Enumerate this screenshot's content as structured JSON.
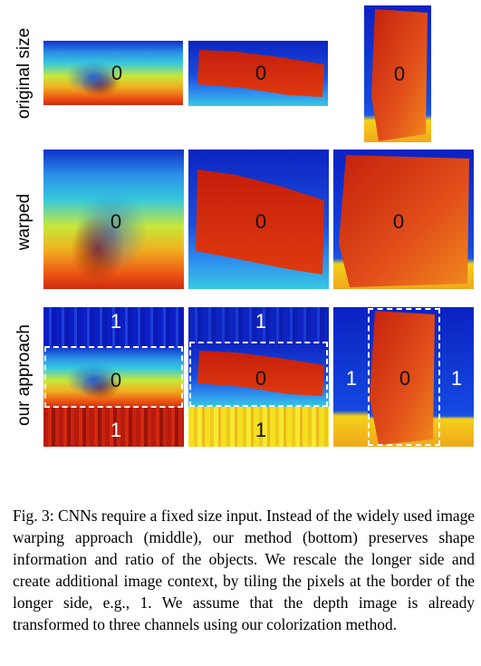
{
  "rows": {
    "original": "original size",
    "warped": "warped",
    "ours": "our approach"
  },
  "labels": {
    "zero": "0",
    "one": "1"
  },
  "caption": "Fig. 3: CNNs require a fixed size input. Instead of the widely used image warping approach (middle), our method (bottom) preserves shape information and ratio of the objects. We rescale the longer side and create additional image context, by tiling the pixels at the border of the longer side, e.g., 1. We assume that the depth image is already transformed to three channels using our colorization method.",
  "colors": {
    "dark_blue": "#0b1fc4",
    "blue": "#1f5ee8",
    "cyan": "#2bc4e6",
    "yellow": "#f2e01c",
    "orange": "#f08a1c",
    "red": "#d62a10",
    "dark_red": "#9a1208"
  }
}
